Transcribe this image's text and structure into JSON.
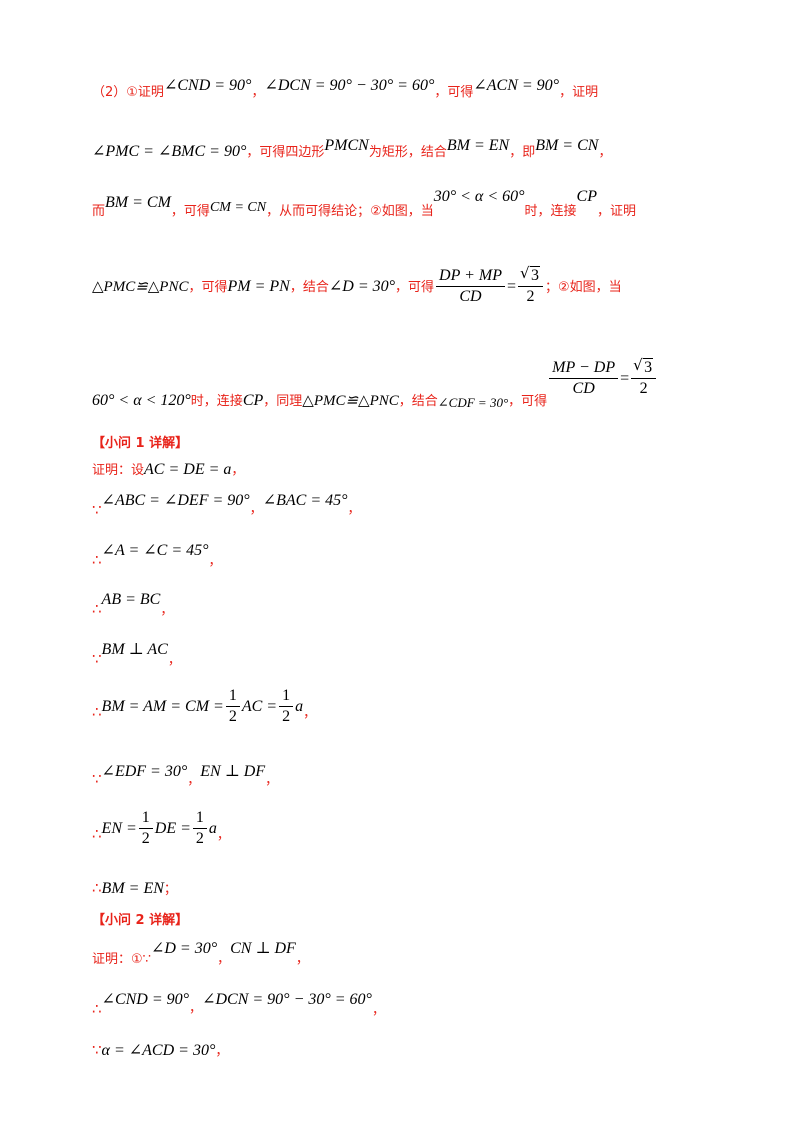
{
  "solution_block": {
    "line1": {
      "prefix": "（2）①证明",
      "m1": "∠CND = 90°",
      "c1": "，",
      "m2": "∠DCN = 90° − 30° = 60°",
      "c2": "，可得",
      "m3": "∠ACN = 90°",
      "c3": "，证明"
    },
    "line2": {
      "m1": "∠PMC = ∠BMC = 90°",
      "c1": "，可得四边形",
      "m2": "PMCN",
      "c2": "为矩形，结合",
      "m3": "BM = EN",
      "c3": "，即",
      "m4": "BM = CN",
      "c4": "，"
    },
    "line3": {
      "prefix": "而",
      "m1": "BM = CM",
      "c1": "，可得",
      "m2": "CM = CN",
      "c2": "，从而可得结论；②如图，当",
      "m3": "30° < α < 60°",
      "c3": "时，连接",
      "m4": "CP",
      "c4": "，证明"
    },
    "line4": {
      "m1": "△PMC≌△PNC",
      "c1": "，可得",
      "m2": "PM = PN",
      "c2": "，结合",
      "m3": "∠D = 30°",
      "c3": "，可得",
      "frac_num": "DP + MP",
      "frac_den": "CD",
      "eq": "=",
      "sqrt_val": "3",
      "sqrt_den": "2",
      "c4": "；②如图，当"
    },
    "line5": {
      "m1": "60° < α < 120°",
      "c1": "时，连接",
      "m2": "CP",
      "c2": "，同理",
      "m3": "△PMC≌△PNC",
      "c3": "，结合",
      "m4": "∠CDF = 30°",
      "c4": "，可得",
      "frac_num": "MP − DP",
      "frac_den": "CD",
      "eq": "=",
      "sqrt_val": "3",
      "sqrt_den": "2"
    }
  },
  "part1": {
    "heading": "【小问 1 详解】",
    "l1_prefix": "证明：设",
    "l1_math": "AC = DE = a",
    "l1_suffix": "，",
    "l2_sym": "∵",
    "l2_m1": "∠ABC = ∠DEF = 90°",
    "l2_c1": "，",
    "l2_m2": "∠BAC = 45°",
    "l2_c2": "，",
    "l3_sym": "∴",
    "l3_math": "∠A = ∠C = 45°",
    "l3_c": "，",
    "l4_sym": "∴",
    "l4_math": "AB = BC",
    "l4_c": "，",
    "l5_sym": "∵",
    "l5_math": "BM ⊥ AC",
    "l5_c": "，",
    "l6_sym": "∴",
    "l6_math": "BM = AM = CM =",
    "l6_f1_num": "1",
    "l6_f1_den": "2",
    "l6_mid": "AC =",
    "l6_f2_num": "1",
    "l6_f2_den": "2",
    "l6_end": "a",
    "l6_c": "，",
    "l7_sym": "∵",
    "l7_m1": "∠EDF = 30°",
    "l7_c1": "，",
    "l7_m2": "EN ⊥ DF",
    "l7_c2": "，",
    "l8_sym": "∴",
    "l8_math": "EN =",
    "l8_f1_num": "1",
    "l8_f1_den": "2",
    "l8_mid": "DE =",
    "l8_f2_num": "1",
    "l8_f2_den": "2",
    "l8_end": "a",
    "l8_c": "，",
    "l9_sym": "∴",
    "l9_math": "BM = EN",
    "l9_c": "；"
  },
  "part2": {
    "heading": "【小问 2 详解】",
    "l1_prefix": "证明：①∵",
    "l1_m1": "∠D = 30°",
    "l1_c1": "，",
    "l1_m2": "CN ⊥ DF",
    "l1_c2": "，",
    "l2_sym": "∴",
    "l2_m1": "∠CND = 90°",
    "l2_c1": "，",
    "l2_m2": "∠DCN = 90° − 30° = 60°",
    "l2_c2": "，",
    "l3_sym": "∵",
    "l3_math": "α = ∠ACD = 30°",
    "l3_c": "，"
  }
}
